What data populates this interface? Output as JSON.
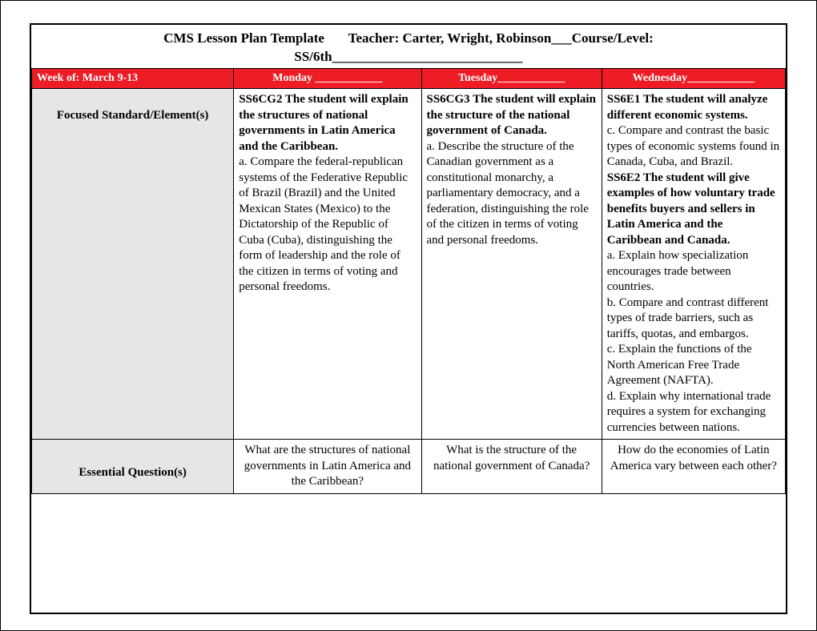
{
  "title_line1": "CMS Lesson Plan Template       Teacher: Carter, Wright, Robinson___Course/Level:",
  "title_line2": "SS/6th____________________________",
  "header": {
    "week": "Week of: March 9-13",
    "mon": "Monday ____________",
    "tue": "Tuesday____________",
    "wed": "Wednesday____________"
  },
  "rows": {
    "focused": {
      "label": "Focused Standard/Element(s)",
      "mon_b": "SS6CG2 The student will explain the structures of national governments in Latin America and the Caribbean.",
      "mon_a": "a. Compare the federal-republican systems of the Federative Republic of Brazil (Brazil) and the United Mexican States (Mexico) to the Dictatorship of the Republic of Cuba (Cuba), distinguishing the form of leadership and the role of the citizen in terms of voting and personal freedoms.",
      "tue_b": "SS6CG3 The student will explain the structure of the national government of Canada.",
      "tue_a": "a. Describe the structure of the Canadian government as a constitutional monarchy, a parliamentary democracy, and a federation, distinguishing the role of the citizen in terms of voting and personal freedoms.",
      "wed_b1": "SS6E1 The student will analyze different economic systems.",
      "wed_c": "c. Compare and contrast the basic types of economic systems found in Canada, Cuba, and Brazil.",
      "wed_b2": "SS6E2 The student will give examples of how voluntary trade benefits buyers and sellers in Latin America and the Caribbean and Canada.",
      "wed_a": "a. Explain how specialization encourages trade between countries.",
      "wed_b": "b. Compare and contrast different types of trade barriers, such as tariffs, quotas, and embargos.",
      "wed_cc": "c. Explain the functions of the North American Free Trade Agreement (NAFTA).",
      "wed_d": "d. Explain why international trade requires a system for exchanging currencies between nations."
    },
    "eq": {
      "label": "Essential Question(s)",
      "mon": "What are the structures of national governments in Latin America and the Caribbean?",
      "tue": "What is the structure of the national government of Canada?",
      "wed": "How do the economies of Latin America vary between each other?"
    }
  },
  "style": {
    "header_bg": "#ee1c25",
    "header_fg": "#ffffff",
    "label_bg": "#e6e6e6",
    "border": "#000000",
    "page_bg": "#ffffff"
  }
}
